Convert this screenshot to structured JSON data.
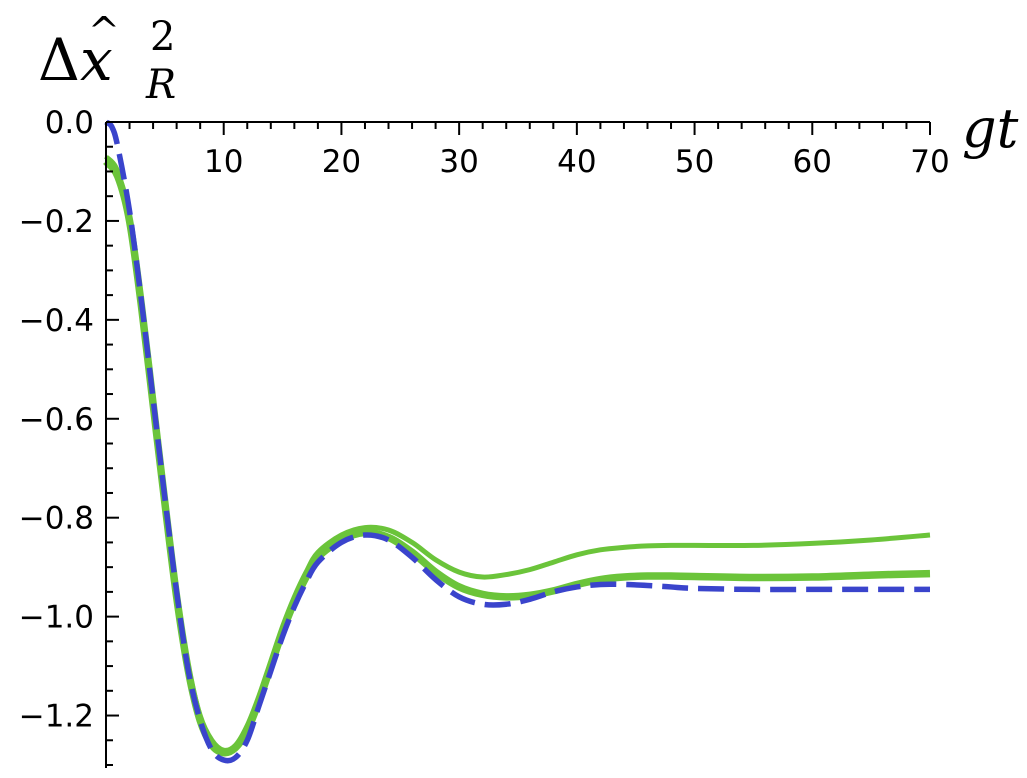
{
  "chart_data": {
    "type": "line",
    "ylabel": "Δx̂²_R",
    "ylabel_parts": {
      "symbol": "Δ",
      "var": "x",
      "hat": "^",
      "sup": "2",
      "sub": "R"
    },
    "xlabel": "gt",
    "xlim": [
      0,
      70
    ],
    "ylim": [
      -1.3,
      0.0
    ],
    "x_ticks": [
      10,
      20,
      30,
      40,
      50,
      60,
      70
    ],
    "x_tick_labels": [
      "10",
      "20",
      "30",
      "40",
      "50",
      "60",
      "70"
    ],
    "y_ticks": [
      0.0,
      -0.2,
      -0.4,
      -0.6,
      -0.8,
      -1.0,
      -1.2
    ],
    "y_tick_labels": [
      "0.0",
      "−0.2",
      "−0.4",
      "−0.6",
      "−0.8",
      "−1.0",
      "−1.2"
    ],
    "x_axis_position": "top",
    "grid": false,
    "legend": "none",
    "series": [
      {
        "style": "solid-thin",
        "color": "#6bc43a",
        "x": [
          0,
          1,
          2,
          3,
          4,
          5,
          6,
          7,
          8,
          9,
          10,
          11,
          12,
          13,
          14,
          15,
          16,
          17,
          18,
          20,
          22,
          24,
          26,
          28,
          30,
          32,
          34,
          36,
          38,
          40,
          42,
          44,
          46,
          48,
          50,
          55,
          60,
          65,
          70
        ],
        "y": [
          -0.07,
          -0.1,
          -0.2,
          -0.37,
          -0.56,
          -0.76,
          -0.95,
          -1.1,
          -1.2,
          -1.25,
          -1.27,
          -1.26,
          -1.22,
          -1.16,
          -1.09,
          -1.02,
          -0.96,
          -0.91,
          -0.87,
          -0.835,
          -0.82,
          -0.825,
          -0.85,
          -0.885,
          -0.91,
          -0.92,
          -0.915,
          -0.905,
          -0.89,
          -0.875,
          -0.865,
          -0.86,
          -0.857,
          -0.856,
          -0.856,
          -0.856,
          -0.852,
          -0.845,
          -0.835
        ]
      },
      {
        "style": "solid-thick",
        "color": "#6bc43a",
        "x": [
          0,
          1,
          2,
          3,
          4,
          5,
          6,
          7,
          8,
          9,
          10,
          11,
          12,
          13,
          14,
          15,
          16,
          17,
          18,
          20,
          22,
          24,
          26,
          28,
          30,
          32,
          34,
          36,
          38,
          40,
          42,
          44,
          46,
          48,
          50,
          55,
          60,
          65,
          70
        ],
        "y": [
          -0.08,
          -0.11,
          -0.2,
          -0.37,
          -0.57,
          -0.77,
          -0.96,
          -1.11,
          -1.21,
          -1.26,
          -1.275,
          -1.265,
          -1.23,
          -1.17,
          -1.1,
          -1.03,
          -0.97,
          -0.92,
          -0.88,
          -0.845,
          -0.83,
          -0.84,
          -0.87,
          -0.91,
          -0.94,
          -0.955,
          -0.96,
          -0.957,
          -0.948,
          -0.935,
          -0.925,
          -0.92,
          -0.918,
          -0.918,
          -0.919,
          -0.921,
          -0.92,
          -0.916,
          -0.913
        ]
      },
      {
        "style": "dashed",
        "color": "#3a44cc",
        "x": [
          0,
          0.5,
          1,
          2,
          3,
          4,
          5,
          6,
          7,
          8,
          9,
          10,
          11,
          12,
          13,
          14,
          15,
          16,
          17,
          18,
          20,
          22,
          24,
          26,
          28,
          30,
          32,
          34,
          36,
          38,
          40,
          42,
          44,
          46,
          48,
          50,
          55,
          60,
          65,
          70
        ],
        "y": [
          0.0,
          -0.01,
          -0.05,
          -0.18,
          -0.36,
          -0.56,
          -0.76,
          -0.95,
          -1.11,
          -1.21,
          -1.27,
          -1.29,
          -1.285,
          -1.25,
          -1.18,
          -1.11,
          -1.04,
          -0.98,
          -0.93,
          -0.89,
          -0.85,
          -0.835,
          -0.845,
          -0.88,
          -0.925,
          -0.96,
          -0.975,
          -0.975,
          -0.965,
          -0.95,
          -0.94,
          -0.935,
          -0.935,
          -0.937,
          -0.94,
          -0.943,
          -0.945,
          -0.945,
          -0.945,
          -0.945
        ]
      }
    ]
  }
}
